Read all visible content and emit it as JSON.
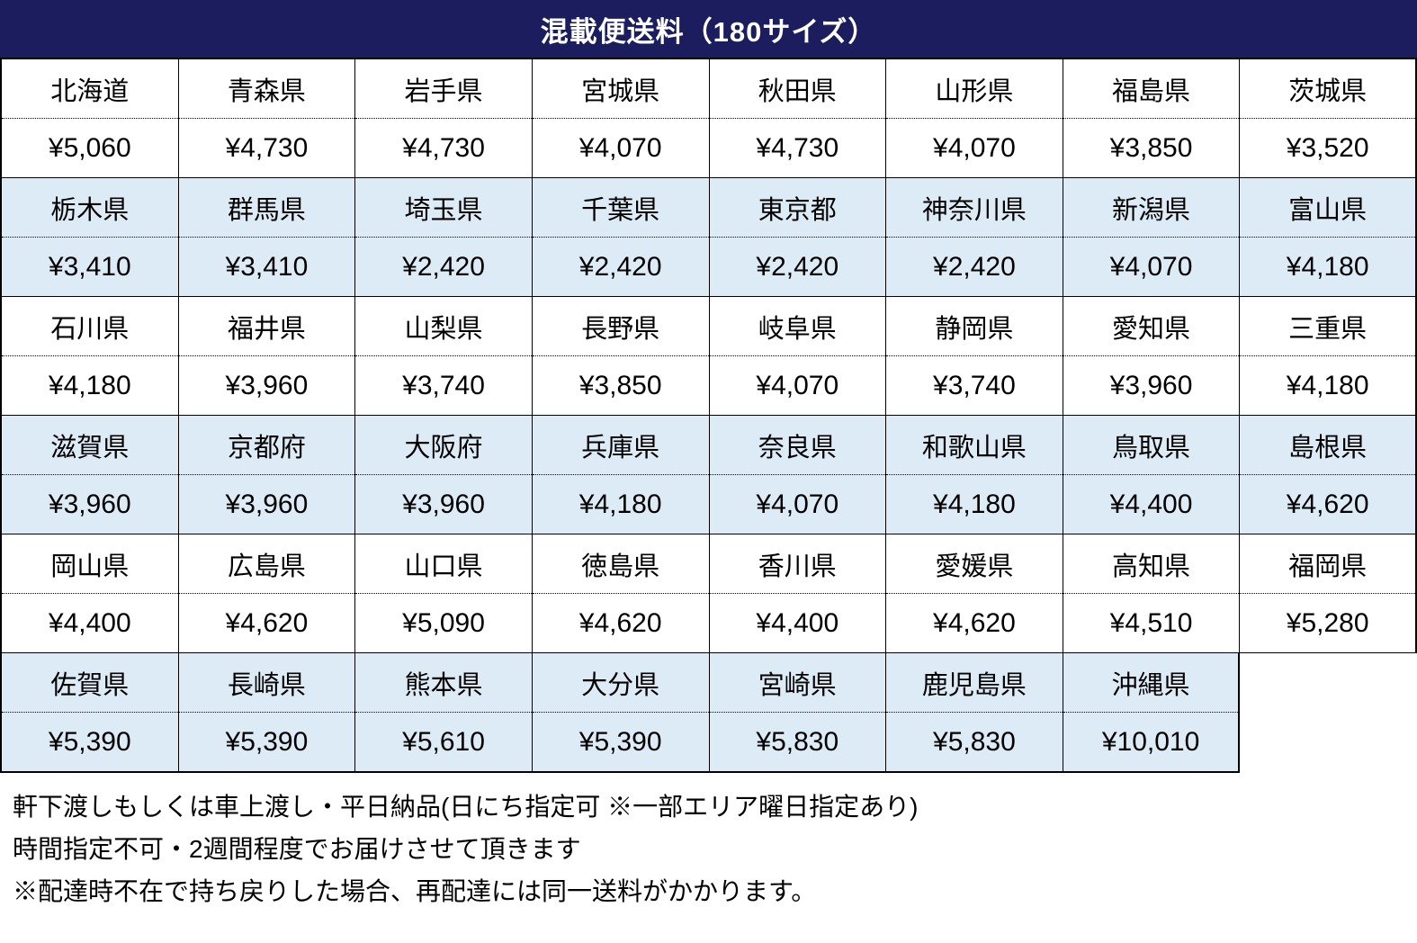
{
  "title": "混載便送料（180サイズ）",
  "colors": {
    "header_bg": "#1B1D5E",
    "header_text": "#FFFFFF",
    "shaded_row_bg": "#DDEBF7",
    "border": "#000000"
  },
  "fee_table": {
    "groups": [
      {
        "shaded": false,
        "cells": [
          {
            "pref": "北海道",
            "price": "¥5,060"
          },
          {
            "pref": "青森県",
            "price": "¥4,730"
          },
          {
            "pref": "岩手県",
            "price": "¥4,730"
          },
          {
            "pref": "宮城県",
            "price": "¥4,070"
          },
          {
            "pref": "秋田県",
            "price": "¥4,730"
          },
          {
            "pref": "山形県",
            "price": "¥4,070"
          },
          {
            "pref": "福島県",
            "price": "¥3,850"
          },
          {
            "pref": "茨城県",
            "price": "¥3,520"
          }
        ]
      },
      {
        "shaded": true,
        "cells": [
          {
            "pref": "栃木県",
            "price": "¥3,410"
          },
          {
            "pref": "群馬県",
            "price": "¥3,410"
          },
          {
            "pref": "埼玉県",
            "price": "¥2,420"
          },
          {
            "pref": "千葉県",
            "price": "¥2,420"
          },
          {
            "pref": "東京都",
            "price": "¥2,420"
          },
          {
            "pref": "神奈川県",
            "price": "¥2,420"
          },
          {
            "pref": "新潟県",
            "price": "¥4,070"
          },
          {
            "pref": "富山県",
            "price": "¥4,180"
          }
        ]
      },
      {
        "shaded": false,
        "cells": [
          {
            "pref": "石川県",
            "price": "¥4,180"
          },
          {
            "pref": "福井県",
            "price": "¥3,960"
          },
          {
            "pref": "山梨県",
            "price": "¥3,740"
          },
          {
            "pref": "長野県",
            "price": "¥3,850"
          },
          {
            "pref": "岐阜県",
            "price": "¥4,070"
          },
          {
            "pref": "静岡県",
            "price": "¥3,740"
          },
          {
            "pref": "愛知県",
            "price": "¥3,960"
          },
          {
            "pref": "三重県",
            "price": "¥4,180"
          }
        ]
      },
      {
        "shaded": true,
        "cells": [
          {
            "pref": "滋賀県",
            "price": "¥3,960"
          },
          {
            "pref": "京都府",
            "price": "¥3,960"
          },
          {
            "pref": "大阪府",
            "price": "¥3,960"
          },
          {
            "pref": "兵庫県",
            "price": "¥4,180"
          },
          {
            "pref": "奈良県",
            "price": "¥4,070"
          },
          {
            "pref": "和歌山県",
            "price": "¥4,180"
          },
          {
            "pref": "鳥取県",
            "price": "¥4,400"
          },
          {
            "pref": "島根県",
            "price": "¥4,620"
          }
        ]
      },
      {
        "shaded": false,
        "cells": [
          {
            "pref": "岡山県",
            "price": "¥4,400"
          },
          {
            "pref": "広島県",
            "price": "¥4,620"
          },
          {
            "pref": "山口県",
            "price": "¥5,090"
          },
          {
            "pref": "徳島県",
            "price": "¥4,620"
          },
          {
            "pref": "香川県",
            "price": "¥4,400"
          },
          {
            "pref": "愛媛県",
            "price": "¥4,620"
          },
          {
            "pref": "高知県",
            "price": "¥4,510"
          },
          {
            "pref": "福岡県",
            "price": "¥5,280"
          }
        ]
      },
      {
        "shaded": true,
        "cells": [
          {
            "pref": "佐賀県",
            "price": "¥5,390"
          },
          {
            "pref": "長崎県",
            "price": "¥5,390"
          },
          {
            "pref": "熊本県",
            "price": "¥5,610"
          },
          {
            "pref": "大分県",
            "price": "¥5,390"
          },
          {
            "pref": "宮崎県",
            "price": "¥5,830"
          },
          {
            "pref": "鹿児島県",
            "price": "¥5,830"
          },
          {
            "pref": "沖縄県",
            "price": "¥10,010"
          }
        ]
      }
    ]
  },
  "notes": [
    "軒下渡しもしくは車上渡し・平日納品(日にち指定可 ※一部エリア曜日指定あり)",
    "時間指定不可・2週間程度でお届けさせて頂きます",
    "※配達時不在で持ち戻りした場合、再配達には同一送料がかかります。"
  ]
}
